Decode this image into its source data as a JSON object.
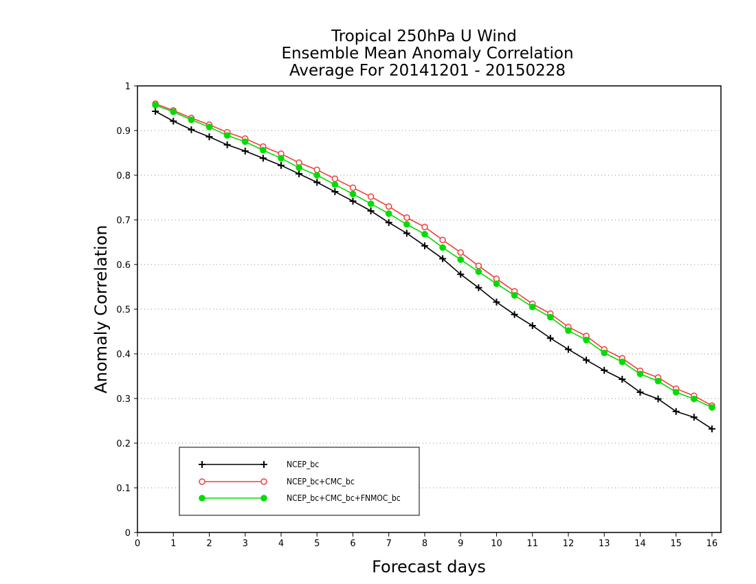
{
  "chart_data": {
    "type": "line",
    "title": [
      "Tropical 250hPa U Wind",
      "Ensemble Mean Anomaly Correlation",
      "Average For 20141201 - 20150228"
    ],
    "xlabel": "Forecast days",
    "ylabel": "Anomaly Correlation",
    "xlim": [
      0,
      16.25
    ],
    "ylim": [
      0,
      1
    ],
    "xticks": [
      "0",
      "1",
      "2",
      "3",
      "4",
      "5",
      "6",
      "7",
      "8",
      "9",
      "10",
      "11",
      "12",
      "13",
      "14",
      "15",
      "16"
    ],
    "yticks": [
      "0",
      "0.1",
      "0.2",
      "0.3",
      "0.4",
      "0.5",
      "0.6",
      "0.7",
      "0.8",
      "0.9",
      "1"
    ],
    "grid": "dotted horizontal",
    "legend_position": "bottom-left",
    "x": [
      0.5,
      1,
      1.5,
      2,
      2.5,
      3,
      3.5,
      4,
      4.5,
      5,
      5.5,
      6,
      6.5,
      7,
      7.5,
      8,
      8.5,
      9,
      9.5,
      10,
      10.5,
      11,
      11.5,
      12,
      12.5,
      13,
      13.5,
      14,
      14.5,
      15,
      15.5,
      16
    ],
    "series": [
      {
        "name": "NCEP_bc",
        "color": "#000000",
        "marker": "plus",
        "values": [
          0.943,
          0.921,
          0.902,
          0.886,
          0.868,
          0.854,
          0.838,
          0.822,
          0.803,
          0.784,
          0.763,
          0.742,
          0.72,
          0.694,
          0.67,
          0.642,
          0.613,
          0.578,
          0.548,
          0.516,
          0.488,
          0.463,
          0.435,
          0.41,
          0.386,
          0.363,
          0.343,
          0.314,
          0.299,
          0.271,
          0.258,
          0.232
        ]
      },
      {
        "name": "NCEP_bc+CMC_bc",
        "color": "#f03c3c",
        "marker": "open-circle",
        "values": [
          0.96,
          0.945,
          0.928,
          0.913,
          0.896,
          0.882,
          0.864,
          0.848,
          0.828,
          0.812,
          0.792,
          0.772,
          0.752,
          0.73,
          0.705,
          0.684,
          0.655,
          0.627,
          0.597,
          0.568,
          0.54,
          0.512,
          0.49,
          0.46,
          0.44,
          0.41,
          0.39,
          0.362,
          0.347,
          0.322,
          0.306,
          0.284
        ]
      },
      {
        "name": "NCEP_bc+CMC_bc+FNMOC_bc",
        "color": "#00dd00",
        "marker": "filled-circle",
        "values": [
          0.957,
          0.942,
          0.924,
          0.908,
          0.889,
          0.875,
          0.856,
          0.838,
          0.817,
          0.8,
          0.779,
          0.758,
          0.736,
          0.714,
          0.69,
          0.668,
          0.638,
          0.611,
          0.584,
          0.557,
          0.531,
          0.505,
          0.482,
          0.452,
          0.431,
          0.402,
          0.382,
          0.355,
          0.339,
          0.314,
          0.299,
          0.28
        ]
      }
    ]
  }
}
